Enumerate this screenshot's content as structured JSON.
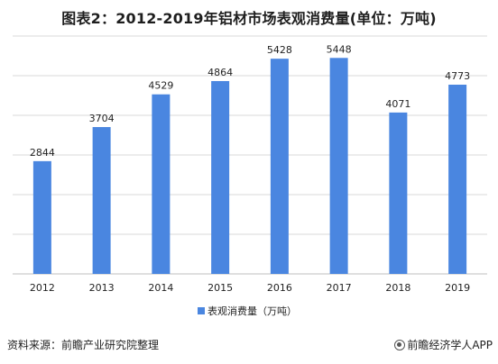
{
  "chart_data": {
    "type": "bar",
    "title": "图表2：2012-2019年铝材市场表观消费量(单位：万吨)",
    "categories": [
      "2012",
      "2013",
      "2014",
      "2015",
      "2016",
      "2017",
      "2018",
      "2019"
    ],
    "series": [
      {
        "name": "表观消费量（万吨）",
        "values": [
          2844,
          3704,
          4529,
          4864,
          5428,
          5448,
          4071,
          4773
        ]
      }
    ],
    "ylim": [
      0,
      6000
    ],
    "grid": true,
    "legend": "bottom",
    "bar_color": "#4a86e0",
    "grid_color": "#d9d9d9"
  },
  "footer": {
    "source": "资料来源：前瞻产业研究院整理",
    "brand": "前瞻经济学人APP"
  }
}
